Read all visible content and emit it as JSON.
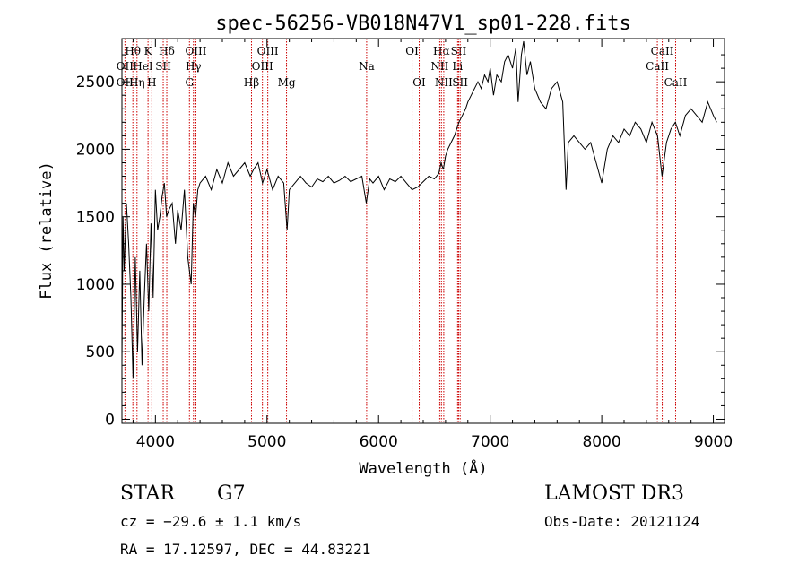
{
  "chart_data": {
    "type": "line",
    "title": "spec-56256-VB018N47V1_sp01-228.fits",
    "xlabel": "Wavelength (Å)",
    "ylabel": "Flux (relative)",
    "xlim": [
      3700,
      9100
    ],
    "ylim": [
      -30,
      2820
    ],
    "xticks": [
      4000,
      5000,
      6000,
      7000,
      8000,
      9000
    ],
    "yticks": [
      0,
      500,
      1000,
      1500,
      2000,
      2500
    ],
    "grid": false,
    "line_color": "#000000",
    "marker_color": "#cc0000",
    "series": [
      {
        "x": [
          3700,
          3710,
          3720,
          3740,
          3760,
          3780,
          3800,
          3820,
          3840,
          3860,
          3880,
          3900,
          3920,
          3940,
          3960,
          3980,
          4000,
          4020,
          4040,
          4060,
          4080,
          4100,
          4120,
          4150,
          4180,
          4200,
          4230,
          4260,
          4290,
          4320,
          4340,
          4360,
          4380,
          4400,
          4450,
          4500,
          4550,
          4600,
          4650,
          4700,
          4750,
          4800,
          4850,
          4880,
          4920,
          4960,
          5000,
          5050,
          5100,
          5150,
          5180,
          5200,
          5250,
          5300,
          5350,
          5400,
          5450,
          5500,
          5550,
          5600,
          5650,
          5700,
          5750,
          5800,
          5850,
          5890,
          5920,
          5950,
          6000,
          6050,
          6100,
          6150,
          6200,
          6250,
          6300,
          6350,
          6400,
          6450,
          6500,
          6540,
          6560,
          6580,
          6600,
          6620,
          6650,
          6680,
          6700,
          6720,
          6750,
          6780,
          6800,
          6830,
          6860,
          6890,
          6920,
          6950,
          6980,
          7000,
          7030,
          7060,
          7100,
          7130,
          7160,
          7200,
          7230,
          7250,
          7280,
          7300,
          7330,
          7360,
          7400,
          7450,
          7500,
          7550,
          7600,
          7650,
          7680,
          7700,
          7750,
          7800,
          7850,
          7900,
          7950,
          8000,
          8050,
          8100,
          8150,
          8200,
          8250,
          8300,
          8350,
          8400,
          8450,
          8500,
          8540,
          8580,
          8620,
          8660,
          8700,
          8750,
          8800,
          8850,
          8900,
          8950,
          9000,
          9030
        ],
        "y": [
          400,
          1500,
          1100,
          1600,
          1300,
          900,
          300,
          1200,
          500,
          1100,
          400,
          900,
          1300,
          800,
          1450,
          900,
          1700,
          1400,
          1500,
          1650,
          1750,
          1500,
          1550,
          1600,
          1300,
          1550,
          1400,
          1700,
          1200,
          1000,
          1600,
          1500,
          1700,
          1750,
          1800,
          1700,
          1850,
          1750,
          1900,
          1800,
          1850,
          1900,
          1800,
          1850,
          1900,
          1750,
          1850,
          1700,
          1800,
          1750,
          1400,
          1700,
          1750,
          1800,
          1750,
          1720,
          1780,
          1760,
          1800,
          1750,
          1770,
          1800,
          1760,
          1780,
          1800,
          1600,
          1780,
          1750,
          1800,
          1700,
          1780,
          1760,
          1800,
          1750,
          1700,
          1720,
          1760,
          1800,
          1780,
          1820,
          1900,
          1850,
          1950,
          2000,
          2050,
          2100,
          2150,
          2200,
          2250,
          2300,
          2350,
          2400,
          2450,
          2500,
          2450,
          2550,
          2500,
          2600,
          2400,
          2550,
          2500,
          2650,
          2700,
          2600,
          2750,
          2350,
          2700,
          2800,
          2550,
          2650,
          2450,
          2350,
          2300,
          2450,
          2500,
          2350,
          1700,
          2050,
          2100,
          2050,
          2000,
          2050,
          1900,
          1750,
          2000,
          2100,
          2050,
          2150,
          2100,
          2200,
          2150,
          2050,
          2200,
          2100,
          1800,
          2050,
          2150,
          2200,
          2100,
          2250,
          2300,
          2250,
          2200,
          2350,
          2250,
          2200
        ]
      }
    ],
    "markers": [
      {
        "label": "Hθ",
        "x": 3798,
        "row": 0
      },
      {
        "label": "OII",
        "x": 3727,
        "row": 1
      },
      {
        "label": "OII",
        "x": 3727,
        "row": 2
      },
      {
        "label": "K",
        "x": 3934,
        "row": 0
      },
      {
        "label": "HeI",
        "x": 3889,
        "row": 1
      },
      {
        "label": "Hη",
        "x": 3835,
        "row": 2
      },
      {
        "label": "Hδ",
        "x": 4102,
        "row": 0
      },
      {
        "label": "SII",
        "x": 4070,
        "row": 1
      },
      {
        "label": "H",
        "x": 3968,
        "row": 2
      },
      {
        "label": "OIII",
        "x": 4363,
        "row": 0
      },
      {
        "label": "Hγ",
        "x": 4341,
        "row": 1
      },
      {
        "label": "G",
        "x": 4305,
        "row": 2
      },
      {
        "label": "OIII",
        "x": 5007,
        "row": 0
      },
      {
        "label": "OIII",
        "x": 4959,
        "row": 1
      },
      {
        "label": "Hβ",
        "x": 4861,
        "row": 2
      },
      {
        "label": "Mg",
        "x": 5175,
        "row": 2
      },
      {
        "label": "Na",
        "x": 5893,
        "row": 1
      },
      {
        "label": "OI",
        "x": 6300,
        "row": 0
      },
      {
        "label": "OI",
        "x": 6364,
        "row": 2
      },
      {
        "label": "Hα",
        "x": 6563,
        "row": 0
      },
      {
        "label": "SII",
        "x": 6717,
        "row": 0
      },
      {
        "label": "NII",
        "x": 6548,
        "row": 1
      },
      {
        "label": "Li",
        "x": 6708,
        "row": 1
      },
      {
        "label": "NII",
        "x": 6584,
        "row": 2
      },
      {
        "label": "SII",
        "x": 6731,
        "row": 2
      },
      {
        "label": "CaII",
        "x": 8542,
        "row": 0
      },
      {
        "label": "CaII",
        "x": 8498,
        "row": 1
      },
      {
        "label": "CaII",
        "x": 8662,
        "row": 2
      }
    ]
  },
  "info": {
    "class": "STAR",
    "subclass": "G7",
    "survey": "LAMOST DR3",
    "cz": "cz = −29.6 ± 1.1 km/s",
    "obs_date": "Obs-Date: 20121124",
    "coords": "RA =  17.12597, DEC =  44.83221"
  }
}
